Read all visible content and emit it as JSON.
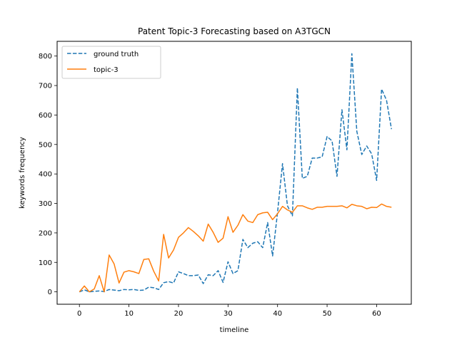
{
  "chart_data": {
    "type": "line",
    "title": "Patent Topic-3 Forecasting based on A3TGCN",
    "xlabel": "timeline",
    "ylabel": "keywords frequency",
    "xlim": [
      -4.5,
      67.0
    ],
    "ylim": [
      -42,
      850
    ],
    "xticks": [
      0,
      10,
      20,
      30,
      40,
      50,
      60
    ],
    "yticks": [
      0,
      100,
      200,
      300,
      400,
      500,
      600,
      700,
      800
    ],
    "grid": false,
    "legend_position": "top-left",
    "x": [
      0,
      1,
      2,
      3,
      4,
      5,
      6,
      7,
      8,
      9,
      10,
      11,
      12,
      13,
      14,
      15,
      16,
      17,
      18,
      19,
      20,
      21,
      22,
      23,
      24,
      25,
      26,
      27,
      28,
      29,
      30,
      31,
      32,
      33,
      34,
      35,
      36,
      37,
      38,
      39,
      40,
      41,
      42,
      43,
      44,
      45,
      46,
      47,
      48,
      49,
      50,
      51,
      52,
      53,
      54,
      55,
      56,
      57,
      58,
      59,
      60,
      61,
      62,
      63
    ],
    "series": [
      {
        "name": "ground truth",
        "color": "#1f77b4",
        "style": "dashed",
        "values": [
          0,
          7,
          0,
          2,
          3,
          1,
          8,
          6,
          4,
          8,
          7,
          8,
          5,
          6,
          16,
          14,
          8,
          31,
          35,
          30,
          68,
          62,
          55,
          55,
          57,
          28,
          58,
          55,
          72,
          32,
          102,
          62,
          72,
          178,
          150,
          165,
          170,
          150,
          235,
          122,
          270,
          435,
          292,
          258,
          692,
          385,
          392,
          454,
          454,
          458,
          527,
          512,
          392,
          618,
          482,
          808,
          545,
          466,
          495,
          468,
          378,
          688,
          650,
          552
        ]
      },
      {
        "name": "topic-3",
        "color": "#ff7f0e",
        "style": "solid",
        "values": [
          0,
          20,
          0,
          10,
          55,
          0,
          125,
          95,
          30,
          67,
          72,
          68,
          62,
          110,
          112,
          70,
          37,
          195,
          115,
          142,
          185,
          200,
          218,
          205,
          190,
          172,
          230,
          202,
          168,
          182,
          255,
          202,
          226,
          262,
          240,
          235,
          262,
          268,
          270,
          245,
          265,
          290,
          278,
          270,
          292,
          292,
          285,
          280,
          287,
          287,
          290,
          290,
          290,
          292,
          285,
          297,
          292,
          290,
          282,
          287,
          286,
          298,
          290,
          287
        ]
      }
    ]
  }
}
